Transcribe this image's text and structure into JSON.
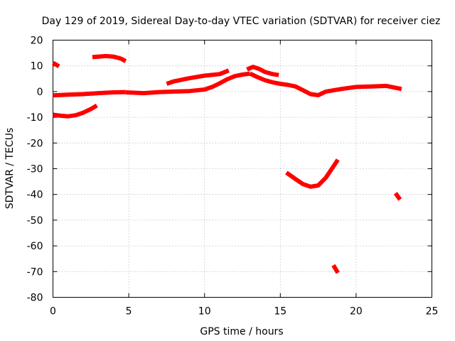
{
  "chart_data": {
    "type": "scatter",
    "title": "Day 129 of 2019, Sidereal Day-to-day VTEC variation (SDTVAR) for receiver ciez",
    "xlabel": "GPS time / hours",
    "ylabel": "SDTVAR / TECUs",
    "xlim": [
      0,
      25
    ],
    "ylim": [
      -80,
      20
    ],
    "xticks": [
      0,
      5,
      10,
      15,
      20,
      25
    ],
    "yticks": [
      20,
      10,
      0,
      -10,
      -20,
      -30,
      -40,
      -50,
      -60,
      -70,
      -80
    ],
    "grid": true,
    "color": "#ff0000",
    "series": [
      {
        "name": "arc-1",
        "x": [
          0.0,
          0.4
        ],
        "y": [
          11.2,
          9.8
        ]
      },
      {
        "name": "arc-2",
        "x": [
          0.0,
          0.5,
          1.0,
          1.5,
          2.0,
          2.5,
          2.9
        ],
        "y": [
          -9.0,
          -9.4,
          -9.6,
          -9.2,
          -8.2,
          -6.8,
          -5.4
        ]
      },
      {
        "name": "arc-3",
        "x": [
          0.0,
          1.0,
          2.0,
          3.0,
          4.0,
          4.8
        ],
        "y": [
          -1.5,
          -1.2,
          -1.0,
          -0.6,
          -0.3,
          -0.2
        ]
      },
      {
        "name": "arc-4",
        "x": [
          2.6,
          3.0,
          3.5,
          4.0,
          4.5,
          4.8
        ],
        "y": [
          13.4,
          13.6,
          13.8,
          13.6,
          12.8,
          11.8
        ]
      },
      {
        "name": "arc-5",
        "x": [
          4.8,
          6.0,
          7.0,
          8.0,
          9.0,
          10.0,
          10.5,
          11.0,
          11.5,
          12.0,
          12.5,
          13.0
        ],
        "y": [
          -0.3,
          -0.6,
          -0.2,
          0.0,
          0.2,
          0.8,
          1.8,
          3.2,
          4.8,
          6.0,
          6.6,
          7.0
        ]
      },
      {
        "name": "arc-6",
        "x": [
          7.5,
          8.0,
          9.0,
          10.0,
          11.0,
          11.6
        ],
        "y": [
          3.0,
          4.0,
          5.2,
          6.2,
          6.8,
          8.2
        ]
      },
      {
        "name": "arc-7",
        "x": [
          12.8,
          13.2,
          13.6,
          14.0,
          14.5,
          14.9
        ],
        "y": [
          8.6,
          9.6,
          8.8,
          7.6,
          6.8,
          6.4
        ]
      },
      {
        "name": "arc-8",
        "x": [
          13.0,
          13.5,
          14.0,
          14.5,
          15.0,
          15.5,
          16.0,
          16.5,
          17.0,
          17.5,
          18.0,
          19.0,
          20.0,
          21.0,
          22.0,
          23.0
        ],
        "y": [
          7.0,
          5.6,
          4.4,
          3.6,
          3.0,
          2.6,
          2.0,
          0.5,
          -1.0,
          -1.4,
          0.0,
          1.0,
          1.8,
          2.0,
          2.2,
          1.0
        ]
      },
      {
        "name": "arc-9",
        "x": [
          15.4,
          16.0,
          16.5,
          17.0,
          17.5,
          18.0,
          18.4,
          18.8
        ],
        "y": [
          -31.5,
          -34.0,
          -36.0,
          -37.0,
          -36.5,
          -33.5,
          -30.0,
          -26.5
        ]
      },
      {
        "name": "arc-10",
        "x": [
          18.5,
          18.8
        ],
        "y": [
          -67.5,
          -70.5
        ]
      },
      {
        "name": "arc-11",
        "x": [
          22.6,
          22.9
        ],
        "y": [
          -39.5,
          -42.0
        ]
      }
    ]
  }
}
